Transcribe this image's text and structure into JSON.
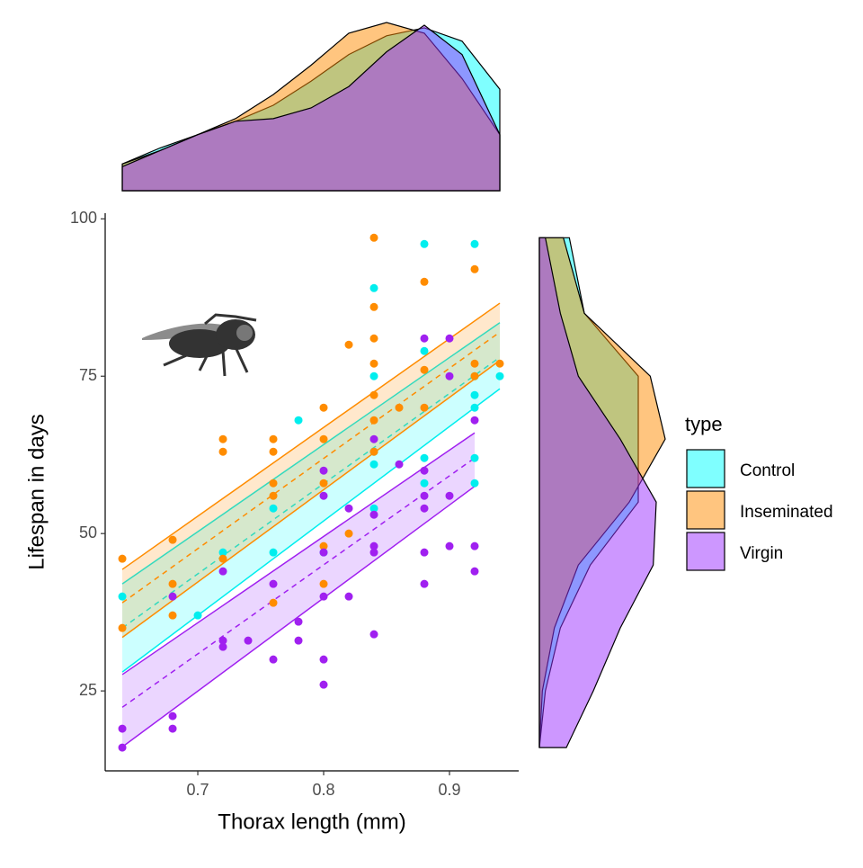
{
  "chart_data": [
    {
      "type": "scatter",
      "xlabel": "Thorax length (mm)",
      "ylabel": "Lifespan in days",
      "xlim": [
        0.6264,
        0.955
      ],
      "ylim": [
        12.3,
        100.9
      ],
      "xticks": [
        0.7,
        0.8,
        0.9
      ],
      "yticks": [
        25,
        50,
        75,
        100
      ],
      "legend_title": "type",
      "legend": "right",
      "series": [
        {
          "name": "Control",
          "color": "#00EEEE",
          "fill": "#00FFFF",
          "x": [
            0.64,
            0.7,
            0.72,
            0.76,
            0.76,
            0.78,
            0.8,
            0.84,
            0.84,
            0.84,
            0.84,
            0.84,
            0.88,
            0.88,
            0.88,
            0.88,
            0.92,
            0.92,
            0.92,
            0.92,
            0.92,
            0.92,
            0.94
          ],
          "values": [
            40,
            37,
            47,
            47,
            54,
            68,
            47,
            89,
            75,
            63,
            61,
            54,
            96,
            79,
            62,
            58,
            96,
            75,
            72,
            70,
            62,
            58,
            75
          ],
          "fit": {
            "x": [
              0.64,
              0.94
            ],
            "values": [
              35,
              78
            ],
            "lower": [
              28,
              73
            ],
            "upper": [
              42,
              83.5
            ]
          }
        },
        {
          "name": "Inseminated",
          "color": "#FF8C00",
          "fill": "#FF8C00",
          "x": [
            0.64,
            0.64,
            0.68,
            0.68,
            0.68,
            0.72,
            0.72,
            0.72,
            0.76,
            0.76,
            0.76,
            0.76,
            0.76,
            0.8,
            0.8,
            0.8,
            0.8,
            0.8,
            0.82,
            0.82,
            0.84,
            0.84,
            0.84,
            0.84,
            0.84,
            0.84,
            0.84,
            0.86,
            0.88,
            0.88,
            0.88,
            0.92,
            0.92,
            0.92,
            0.94
          ],
          "values": [
            46,
            35,
            49,
            42,
            37,
            65,
            63,
            46,
            65,
            63,
            58,
            56,
            39,
            70,
            65,
            58,
            48,
            42,
            80,
            50,
            97,
            86,
            81,
            77,
            72,
            68,
            63,
            70,
            90,
            76,
            70,
            92,
            77,
            75,
            77
          ],
          "fit": {
            "x": [
              0.64,
              0.94
            ],
            "values": [
              39,
              82
            ],
            "lower": [
              33.5,
              77.5
            ],
            "upper": [
              44.3,
              86.6
            ]
          }
        },
        {
          "name": "Virgin",
          "color": "#A020F0",
          "fill": "#9B30FF",
          "x": [
            0.64,
            0.64,
            0.68,
            0.68,
            0.68,
            0.72,
            0.72,
            0.72,
            0.74,
            0.76,
            0.76,
            0.78,
            0.78,
            0.8,
            0.8,
            0.8,
            0.8,
            0.8,
            0.8,
            0.82,
            0.82,
            0.84,
            0.84,
            0.84,
            0.84,
            0.84,
            0.86,
            0.88,
            0.88,
            0.88,
            0.88,
            0.88,
            0.88,
            0.9,
            0.9,
            0.9,
            0.9,
            0.92,
            0.92,
            0.92
          ],
          "values": [
            19,
            16,
            40,
            21,
            19,
            44,
            33,
            32,
            33,
            42,
            30,
            36,
            33,
            60,
            56,
            47,
            40,
            30,
            26,
            54,
            40,
            65,
            53,
            48,
            47,
            34,
            61,
            81,
            60,
            56,
            54,
            47,
            42,
            81,
            75,
            56,
            48,
            68,
            48,
            44
          ],
          "fit": {
            "x": [
              0.64,
              0.92
            ],
            "values": [
              22.4,
              62
            ],
            "lower": [
              16.1,
              57.5
            ],
            "upper": [
              27.6,
              66
            ]
          }
        }
      ]
    },
    {
      "type": "density",
      "orientation": "horizontal",
      "xlim": [
        0.6264,
        0.955
      ],
      "ylim": [
        0,
        6.3
      ],
      "x": [
        0.64,
        0.67,
        0.7,
        0.73,
        0.76,
        0.79,
        0.82,
        0.85,
        0.88,
        0.91,
        0.94
      ],
      "series": [
        {
          "name": "Control",
          "color": "#00FFFF",
          "values": [
            1.0,
            1.6,
            2.1,
            2.6,
            3.2,
            4.1,
            5.1,
            5.8,
            6.1,
            5.6,
            3.8
          ]
        },
        {
          "name": "Inseminated",
          "color": "#FF8C00",
          "values": [
            1.0,
            1.5,
            2.1,
            2.7,
            3.6,
            4.7,
            5.9,
            6.3,
            5.9,
            4.2,
            2.1
          ]
        },
        {
          "name": "Virgin",
          "color": "#9B30FF",
          "values": [
            0.9,
            1.5,
            2.1,
            2.6,
            2.7,
            3.1,
            3.9,
            5.2,
            6.2,
            5.1,
            2.1
          ]
        }
      ]
    },
    {
      "type": "density",
      "orientation": "vertical",
      "xlim": [
        12.3,
        100.9
      ],
      "ylim": [
        0,
        4.2
      ],
      "x": [
        16,
        25,
        35,
        45,
        55,
        65,
        75,
        85,
        97
      ],
      "series": [
        {
          "name": "Control",
          "color": "#00FFFF",
          "values": [
            0,
            0.2,
            0.7,
            1.7,
            3.3,
            3.3,
            3.3,
            1.5,
            1.0
          ]
        },
        {
          "name": "Inseminated",
          "color": "#FF8C00",
          "values": [
            0,
            0.1,
            0.5,
            1.3,
            3.0,
            4.2,
            3.7,
            1.5,
            0.8
          ]
        },
        {
          "name": "Virgin",
          "color": "#9B30FF",
          "values": [
            0.9,
            1.8,
            2.7,
            3.8,
            3.9,
            2.7,
            1.3,
            0.7,
            0.2
          ]
        }
      ]
    }
  ]
}
